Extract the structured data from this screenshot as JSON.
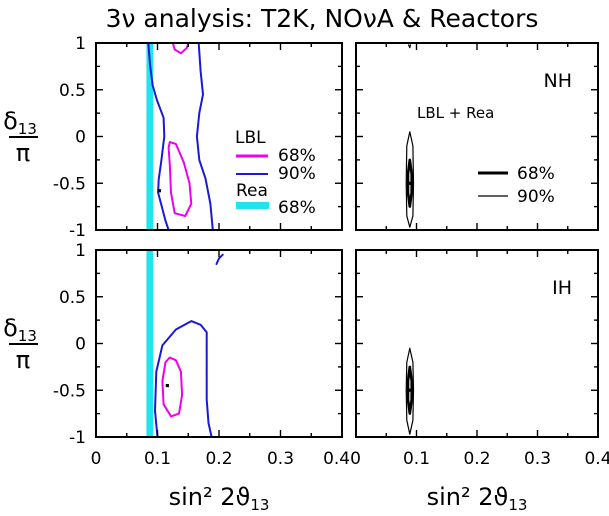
{
  "chart_data": {
    "type": "contour",
    "title": "3ν analysis: T2K, NOνA & Reactors",
    "xlabel": "sin² 2ϑ₁₃",
    "ylabel": "δ₁₃ / π",
    "xlim": [
      0,
      0.4
    ],
    "ylim": [
      -1,
      1
    ],
    "xticks": [
      "0",
      "0.1",
      "0.2",
      "0.3",
      "0.40"
    ],
    "xticks_right": [
      "0.1",
      "0.2",
      "0.3",
      "0.4"
    ],
    "yticks": [
      "1",
      "0.5",
      "0",
      "-0.5",
      "-1"
    ],
    "colors": {
      "lbl68": "#ee00ee",
      "lbl90": "#1a1ad6",
      "rea": "#22e4ee",
      "combined": "#000000"
    },
    "legend_left": {
      "lbl": "LBL",
      "lbl68": "68%",
      "lbl90": "90%",
      "rea": "Rea",
      "rea68": "68%"
    },
    "legend_right": {
      "label": "LBL + Rea",
      "c68": "68%",
      "c90": "90%"
    },
    "panels": [
      {
        "hierarchy": "",
        "kind": "separate",
        "reactor_band": [
          0.082,
          0.093
        ],
        "best_fit": [
          0.103,
          -0.58
        ],
        "lbl68": [
          [
            [
              0.125,
              1.0
            ],
            [
              0.128,
              0.93
            ],
            [
              0.138,
              0.89
            ],
            [
              0.148,
              0.95
            ],
            [
              0.15,
              1.0
            ]
          ],
          [
            [
              0.118,
              -0.12
            ],
            [
              0.12,
              -0.3
            ],
            [
              0.122,
              -0.6
            ],
            [
              0.128,
              -0.82
            ],
            [
              0.145,
              -0.85
            ],
            [
              0.155,
              -0.72
            ],
            [
              0.152,
              -0.5
            ],
            [
              0.143,
              -0.28
            ],
            [
              0.13,
              -0.08
            ],
            [
              0.12,
              -0.06
            ],
            [
              0.118,
              -0.12
            ]
          ]
        ],
        "lbl90": [
          [
            [
              0.085,
              1.0
            ],
            [
              0.088,
              0.76
            ],
            [
              0.092,
              0.55
            ],
            [
              0.099,
              0.39
            ],
            [
              0.11,
              0.2
            ],
            [
              0.111,
              0.0
            ],
            [
              0.106,
              -0.27
            ],
            [
              0.102,
              -0.46
            ],
            [
              0.101,
              -0.6
            ],
            [
              0.107,
              -0.75
            ],
            [
              0.113,
              -0.9
            ],
            [
              0.118,
              -1.0
            ]
          ],
          [
            [
              0.167,
              1.0
            ],
            [
              0.17,
              0.7
            ],
            [
              0.174,
              0.45
            ],
            [
              0.168,
              0.25
            ],
            [
              0.164,
              0.0
            ],
            [
              0.168,
              -0.25
            ],
            [
              0.178,
              -0.45
            ],
            [
              0.186,
              -0.72
            ],
            [
              0.19,
              -1.0
            ]
          ]
        ],
        "combined68": [],
        "combined90": []
      },
      {
        "hierarchy": "NH",
        "kind": "combined",
        "reactor_band": [],
        "best_fit": [
          0.089,
          -0.5
        ],
        "lbl68": [],
        "lbl90": [],
        "combined68": [
          [
            [
              0.089,
              -0.25
            ],
            [
              0.092,
              -0.4
            ],
            [
              0.092,
              -0.6
            ],
            [
              0.089,
              -0.75
            ],
            [
              0.086,
              -0.6
            ],
            [
              0.086,
              -0.4
            ],
            [
              0.089,
              -0.25
            ]
          ]
        ],
        "combined90": [
          [
            [
              0.089,
              0.05
            ],
            [
              0.094,
              -0.1
            ],
            [
              0.095,
              -0.5
            ],
            [
              0.094,
              -0.85
            ],
            [
              0.089,
              -0.97
            ],
            [
              0.084,
              -0.85
            ],
            [
              0.083,
              -0.5
            ],
            [
              0.084,
              -0.1
            ],
            [
              0.089,
              0.05
            ]
          ],
          [
            [
              0.087,
              0.98
            ],
            [
              0.089,
              0.95
            ],
            [
              0.09,
              0.98
            ]
          ]
        ]
      },
      {
        "hierarchy": "",
        "kind": "separate",
        "reactor_band": [
          0.082,
          0.093
        ],
        "best_fit": [
          0.116,
          -0.45
        ],
        "lbl68": [
          [
            [
              0.113,
              -0.2
            ],
            [
              0.108,
              -0.4
            ],
            [
              0.11,
              -0.65
            ],
            [
              0.122,
              -0.78
            ],
            [
              0.135,
              -0.75
            ],
            [
              0.14,
              -0.55
            ],
            [
              0.138,
              -0.3
            ],
            [
              0.13,
              -0.18
            ],
            [
              0.12,
              -0.15
            ],
            [
              0.113,
              -0.2
            ]
          ]
        ],
        "lbl90": [
          [
            [
              0.1,
              -1.0
            ],
            [
              0.096,
              -0.72
            ],
            [
              0.098,
              -0.3
            ],
            [
              0.108,
              -0.02
            ],
            [
              0.13,
              0.15
            ],
            [
              0.155,
              0.24
            ],
            [
              0.17,
              0.2
            ],
            [
              0.18,
              0.12
            ],
            [
              0.18,
              -0.2
            ],
            [
              0.18,
              -0.6
            ],
            [
              0.183,
              -0.85
            ],
            [
              0.188,
              -1.0
            ]
          ],
          [
            [
              0.196,
              0.85
            ],
            [
              0.2,
              0.91
            ],
            [
              0.206,
              0.95
            ]
          ]
        ],
        "combined68": [],
        "combined90": []
      },
      {
        "hierarchy": "IH",
        "kind": "combined",
        "reactor_band": [],
        "best_fit": [
          0.089,
          -0.5
        ],
        "lbl68": [],
        "lbl90": [],
        "combined68": [
          [
            [
              0.089,
              -0.25
            ],
            [
              0.092,
              -0.4
            ],
            [
              0.092,
              -0.6
            ],
            [
              0.089,
              -0.75
            ],
            [
              0.086,
              -0.6
            ],
            [
              0.086,
              -0.4
            ],
            [
              0.089,
              -0.25
            ]
          ]
        ],
        "combined90": [
          [
            [
              0.089,
              -0.05
            ],
            [
              0.094,
              -0.2
            ],
            [
              0.095,
              -0.5
            ],
            [
              0.094,
              -0.82
            ],
            [
              0.089,
              -0.97
            ],
            [
              0.084,
              -0.82
            ],
            [
              0.083,
              -0.5
            ],
            [
              0.084,
              -0.2
            ],
            [
              0.089,
              -0.05
            ]
          ]
        ]
      }
    ]
  }
}
